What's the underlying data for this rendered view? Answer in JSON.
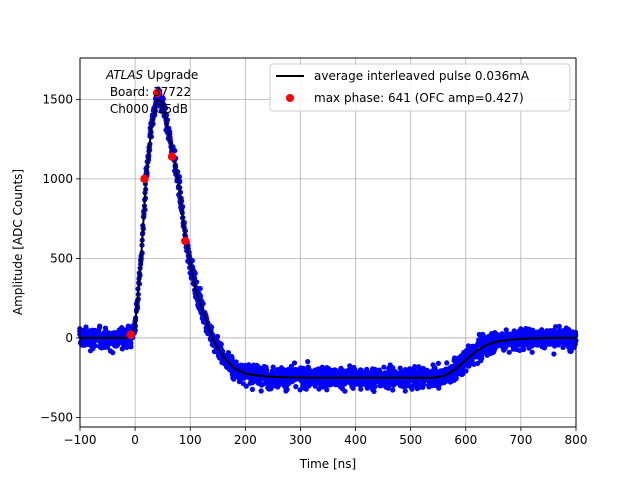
{
  "chart_data": {
    "type": "scatter",
    "xlabel": "Time [ns]",
    "ylabel": "Amplitude [ADC Counts]",
    "xlim": [
      -100,
      800
    ],
    "ylim": [
      -560,
      1760
    ],
    "xticks": [
      -100,
      0,
      100,
      200,
      300,
      400,
      500,
      600,
      700,
      800
    ],
    "yticks": [
      -500,
      0,
      500,
      1000,
      1500
    ],
    "grid": true,
    "legend_position": "top-right",
    "annotation": {
      "line1_italic": "ATLAS",
      "line1_rest": " Upgrade",
      "line2": " Board: 37722",
      "line3": " Ch000 -15dB"
    },
    "series": [
      {
        "name": "average interleaved pulse 0.036mA",
        "kind": "line",
        "color": "#000000",
        "points": [
          [
            -100,
            0
          ],
          [
            -15,
            0
          ],
          [
            -5,
            20
          ],
          [
            0,
            80
          ],
          [
            10,
            450
          ],
          [
            20,
            1000
          ],
          [
            30,
            1330
          ],
          [
            40,
            1500
          ],
          [
            50,
            1480
          ],
          [
            60,
            1300
          ],
          [
            70,
            1140
          ],
          [
            80,
            950
          ],
          [
            90,
            650
          ],
          [
            100,
            480
          ],
          [
            110,
            300
          ],
          [
            125,
            150
          ],
          [
            140,
            0
          ],
          [
            160,
            -120
          ],
          [
            180,
            -190
          ],
          [
            200,
            -225
          ],
          [
            230,
            -240
          ],
          [
            270,
            -248
          ],
          [
            330,
            -250
          ],
          [
            400,
            -250
          ],
          [
            480,
            -250
          ],
          [
            540,
            -250
          ],
          [
            560,
            -240
          ],
          [
            580,
            -200
          ],
          [
            600,
            -140
          ],
          [
            620,
            -80
          ],
          [
            640,
            -40
          ],
          [
            660,
            -20
          ],
          [
            700,
            -5
          ],
          [
            750,
            0
          ],
          [
            800,
            0
          ]
        ]
      },
      {
        "name": "max phase: 641 (OFC amp=0.427)",
        "kind": "marker",
        "color": "#ff0000",
        "points": [
          [
            -8,
            20
          ],
          [
            17,
            1000
          ],
          [
            40,
            1540
          ],
          [
            67,
            1140
          ],
          [
            91,
            610
          ]
        ]
      },
      {
        "name": "",
        "kind": "scatter-band",
        "color": "#0000ff",
        "note_noise_sigma_adc": 45
      }
    ]
  }
}
